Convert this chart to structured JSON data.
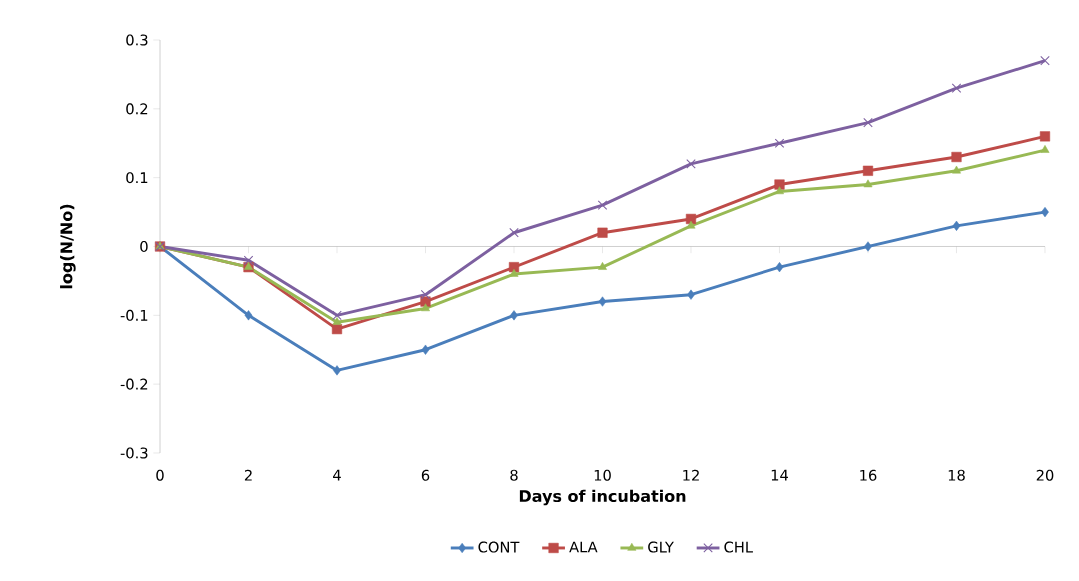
{
  "chart_data": {
    "type": "line",
    "xlabel": "Days of incubation",
    "ylabel": "log(N/No)",
    "x": [
      0,
      2,
      4,
      6,
      8,
      10,
      12,
      14,
      16,
      18,
      20
    ],
    "series": [
      {
        "name": "CONT",
        "color": "#4a7ebb",
        "marker": "diamond",
        "values": [
          0,
          -0.1,
          -0.18,
          -0.15,
          -0.1,
          -0.08,
          -0.07,
          -0.03,
          0,
          0.03,
          0.05
        ]
      },
      {
        "name": "ALA",
        "color": "#be4b48",
        "marker": "square",
        "values": [
          0,
          -0.03,
          -0.12,
          -0.08,
          -0.03,
          0.02,
          0.04,
          0.09,
          0.11,
          0.13,
          0.16
        ]
      },
      {
        "name": "GLY",
        "color": "#98b954",
        "marker": "triangle",
        "values": [
          0,
          -0.03,
          -0.11,
          -0.09,
          -0.04,
          -0.03,
          0.03,
          0.08,
          0.09,
          0.11,
          0.14
        ]
      },
      {
        "name": "CHL",
        "color": "#7d60a0",
        "marker": "cross",
        "values": [
          0,
          -0.02,
          -0.1,
          -0.07,
          0.02,
          0.06,
          0.12,
          0.15,
          0.18,
          0.23,
          0.27
        ]
      }
    ],
    "xlim": [
      0,
      20
    ],
    "ylim": [
      -0.3,
      0.3
    ],
    "xticks": [
      0,
      2,
      4,
      6,
      8,
      10,
      12,
      14,
      16,
      18,
      20
    ],
    "yticks": [
      -0.3,
      -0.2,
      -0.1,
      0,
      0.1,
      0.2,
      0.3
    ],
    "legend": "bottom",
    "line_style": "solid"
  }
}
